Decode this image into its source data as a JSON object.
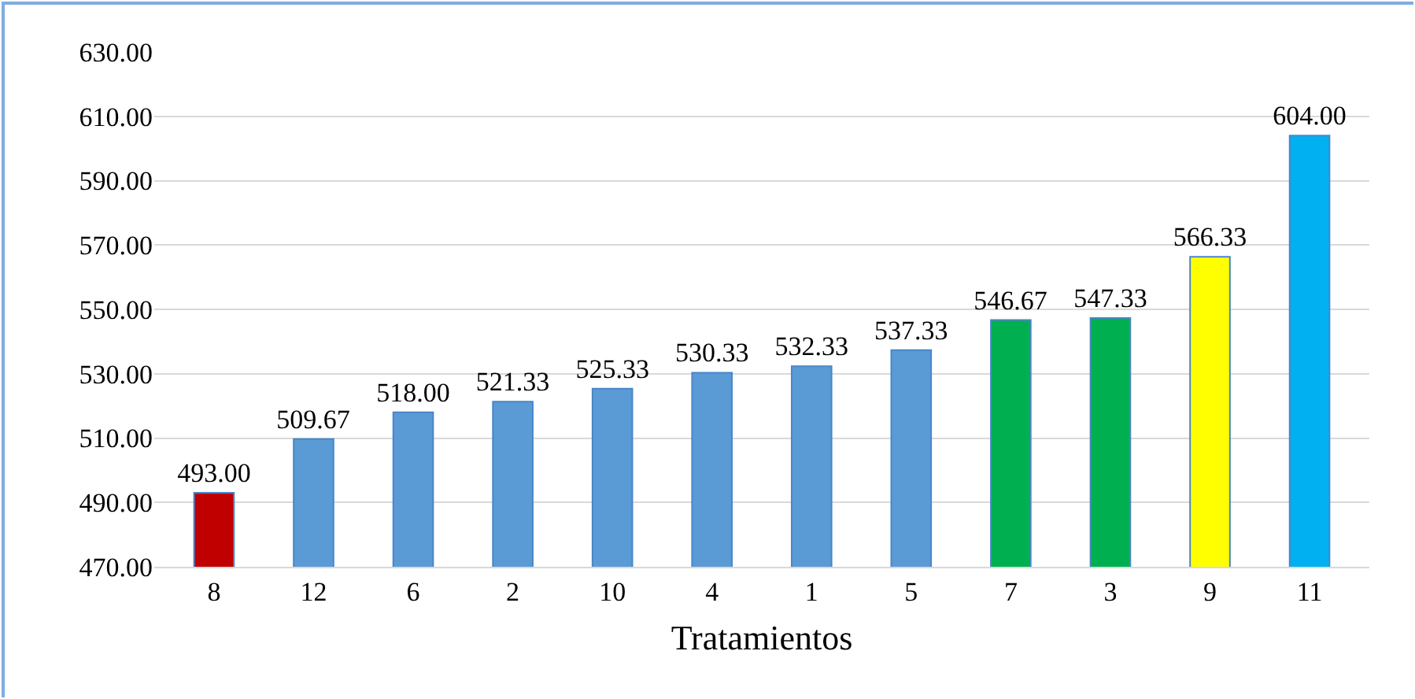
{
  "chart_data": {
    "type": "bar",
    "xlabel": "Tratamientos",
    "categories": [
      "8",
      "12",
      "6",
      "2",
      "10",
      "4",
      "1",
      "5",
      "7",
      "3",
      "9",
      "11"
    ],
    "values": [
      493.0,
      509.67,
      518.0,
      521.33,
      525.33,
      530.33,
      532.33,
      537.33,
      546.67,
      547.33,
      566.33,
      604.0
    ],
    "colors": [
      "#c00000",
      "#5b9bd5",
      "#5b9bd5",
      "#5b9bd5",
      "#5b9bd5",
      "#5b9bd5",
      "#5b9bd5",
      "#5b9bd5",
      "#00b050",
      "#00b050",
      "#ffff00",
      "#00b0f0"
    ],
    "value_labels": [
      "493.00",
      "509.67",
      "518.00",
      "521.33",
      "525.33",
      "530.33",
      "532.33",
      "537.33",
      "546.67",
      "547.33",
      "566.33",
      "604.00"
    ],
    "ylim": [
      470,
      630
    ],
    "yticks": [
      {
        "value": 470,
        "label": "470.00"
      },
      {
        "value": 490,
        "label": "490.00"
      },
      {
        "value": 510,
        "label": "510.00"
      },
      {
        "value": 530,
        "label": "530.00"
      },
      {
        "value": 550,
        "label": "550.00"
      },
      {
        "value": 570,
        "label": "570.00"
      },
      {
        "value": 590,
        "label": "590.00"
      },
      {
        "value": 610,
        "label": "610.00"
      },
      {
        "value": 630,
        "label": "630.00"
      }
    ],
    "grid": "y"
  }
}
